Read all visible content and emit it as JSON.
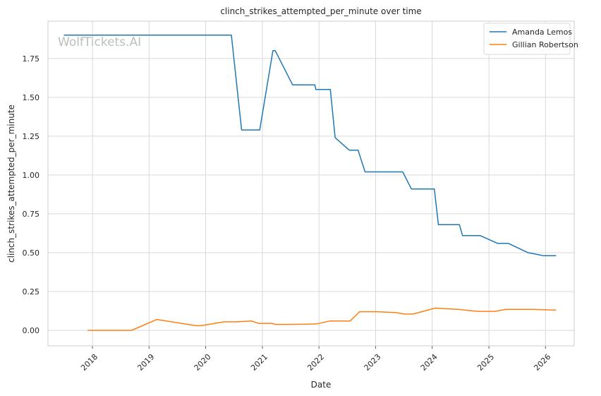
{
  "chart_data": {
    "type": "line",
    "title": "clinch_strikes_attempted_per_minute over time",
    "xlabel": "Date",
    "ylabel": "clinch_strikes_attempted_per_minute",
    "watermark": "WolfTickets.AI",
    "grid": true,
    "legend_position": "top-right",
    "xlim": [
      "2017-03-20",
      "2026-07-05"
    ],
    "ylim": [
      -0.1,
      1.99
    ],
    "x_ticks": [
      "2018-01-01",
      "2019-01-01",
      "2020-01-01",
      "2021-01-01",
      "2022-01-01",
      "2023-01-01",
      "2024-01-01",
      "2025-01-01",
      "2026-01-01"
    ],
    "x_tick_labels": [
      "2018",
      "2019",
      "2020",
      "2021",
      "2022",
      "2023",
      "2024",
      "2025",
      "2026"
    ],
    "y_ticks": [
      0.0,
      0.25,
      0.5,
      0.75,
      1.0,
      1.25,
      1.5,
      1.75
    ],
    "y_tick_labels": [
      "0.00",
      "0.25",
      "0.50",
      "0.75",
      "1.00",
      "1.25",
      "1.50",
      "1.75"
    ],
    "series": [
      {
        "name": "Amanda Lemos",
        "color": "#1f77b4",
        "x": [
          "2017-07-01",
          "2020-06-15",
          "2020-08-20",
          "2020-12-15",
          "2021-03-10",
          "2021-03-25",
          "2021-07-15",
          "2021-12-05",
          "2021-12-12",
          "2022-03-15",
          "2022-04-15",
          "2022-07-15",
          "2022-09-10",
          "2022-10-25",
          "2023-06-25",
          "2023-08-20",
          "2024-01-15",
          "2024-02-10",
          "2024-06-25",
          "2024-07-15",
          "2024-11-05",
          "2025-02-25",
          "2025-05-05",
          "2025-09-10",
          "2025-12-20",
          "2026-03-10"
        ],
        "y": [
          1.9,
          1.9,
          1.29,
          1.29,
          1.8,
          1.8,
          1.58,
          1.58,
          1.55,
          1.55,
          1.24,
          1.16,
          1.16,
          1.02,
          1.02,
          0.91,
          0.91,
          0.68,
          0.68,
          0.61,
          0.61,
          0.56,
          0.56,
          0.5,
          0.48,
          0.48
        ]
      },
      {
        "name": "Gillian Robertson",
        "color": "#ff7f0e",
        "x": [
          "2017-12-01",
          "2018-09-10",
          "2019-02-20",
          "2019-11-01",
          "2019-12-01",
          "2020-05-01",
          "2020-07-20",
          "2020-10-25",
          "2020-12-05",
          "2021-03-05",
          "2021-03-25",
          "2021-06-25",
          "2021-10-15",
          "2021-12-20",
          "2022-03-10",
          "2022-07-20",
          "2022-09-20",
          "2023-01-10",
          "2023-05-10",
          "2023-07-05",
          "2023-09-01",
          "2024-01-20",
          "2024-06-15",
          "2024-10-20",
          "2025-02-10",
          "2025-04-20",
          "2025-10-15",
          "2026-03-10"
        ],
        "y": [
          0.0,
          0.0,
          0.07,
          0.03,
          0.03,
          0.055,
          0.055,
          0.06,
          0.045,
          0.045,
          0.038,
          0.038,
          0.04,
          0.042,
          0.06,
          0.06,
          0.12,
          0.12,
          0.115,
          0.105,
          0.105,
          0.143,
          0.135,
          0.122,
          0.122,
          0.135,
          0.135,
          0.13
        ]
      }
    ]
  }
}
